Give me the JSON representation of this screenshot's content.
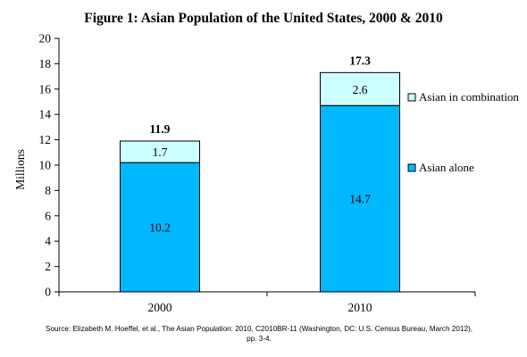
{
  "chart_data": {
    "type": "bar",
    "stacked": true,
    "title": "Figure 1: Asian Population of the United States, 2000 & 2010",
    "ylabel": "Millions",
    "xlabel": "",
    "ylim": [
      0,
      20
    ],
    "yticks": [
      0,
      2,
      4,
      6,
      8,
      10,
      12,
      14,
      16,
      18,
      20
    ],
    "categories": [
      "2000",
      "2010"
    ],
    "series": [
      {
        "name": "Asian alone",
        "values": [
          10.2,
          14.7
        ],
        "labels": [
          "10.2",
          "14.7"
        ],
        "color": "#00b8ff"
      },
      {
        "name": "Asian in combination",
        "values": [
          1.7,
          2.6
        ],
        "labels": [
          "1.7",
          "2.6"
        ],
        "color": "#ccffff"
      }
    ],
    "totals": [
      "11.9",
      "17.3"
    ],
    "legend_position": "right",
    "grid": false
  },
  "source": {
    "line1": "Source: Elizabeth M. Hoeffel, et al., The Asian Population: 2010, C2010BR-11 (Washington, DC: U.S. Census Bureau, March 2012),",
    "line2": "pp. 3-4."
  }
}
